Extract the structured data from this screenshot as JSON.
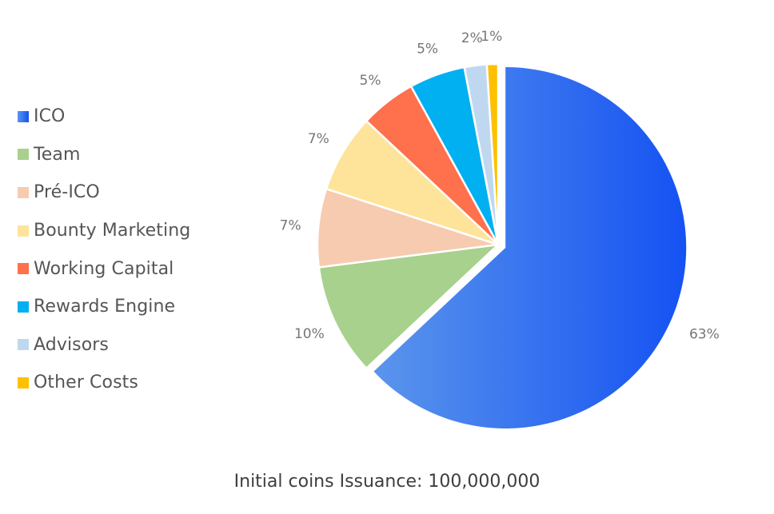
{
  "chart_data": {
    "type": "pie",
    "title": "",
    "categories": [
      "ICO",
      "Team",
      "Pré-ICO",
      "Bounty Marketing",
      "Working Capital",
      "Rewards Engine",
      "Advisors",
      "Other Costs"
    ],
    "values": [
      63,
      10,
      7,
      7,
      5,
      5,
      2,
      1
    ],
    "value_labels": [
      "63%",
      "10%",
      "7%",
      "7%",
      "5%",
      "5%",
      "2%",
      "1%"
    ],
    "colors": [
      "#3d7ef0",
      "#a7d18c",
      "#f7cbb0",
      "#fde49a",
      "#ff704c",
      "#00b0f0",
      "#c0d8ef",
      "#ffc000"
    ],
    "exploded_slice": "ICO",
    "legend_position": "left",
    "caption": "Initial coins Issuance: 100,000,000"
  }
}
